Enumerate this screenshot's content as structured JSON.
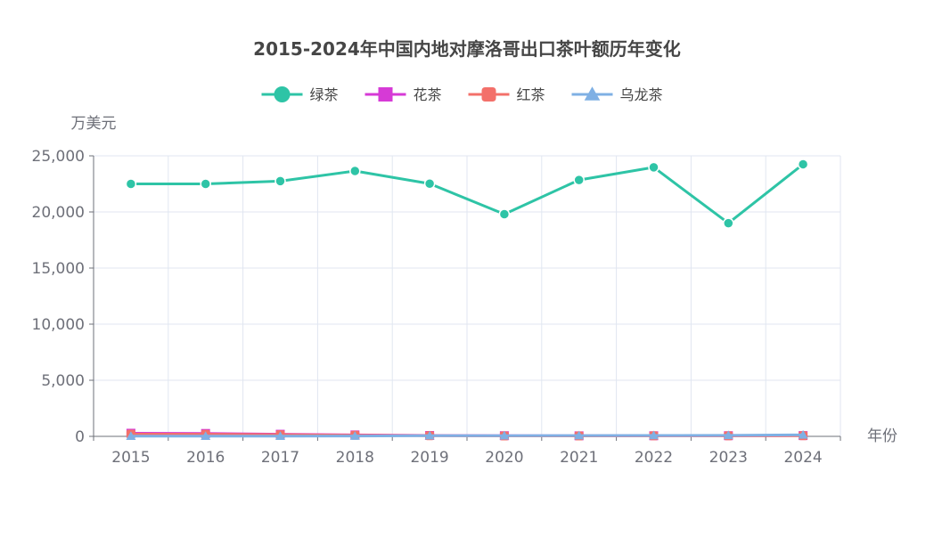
{
  "chart_data": {
    "type": "line",
    "title": "2015-2024年中国内地对摩洛哥出口茶叶额历年变化",
    "xlabel": "年份",
    "ylabel": "万美元",
    "categories": [
      "2015",
      "2016",
      "2017",
      "2018",
      "2019",
      "2020",
      "2021",
      "2022",
      "2023",
      "2024"
    ],
    "ylim": [
      0,
      25000
    ],
    "yticks": [
      0,
      5000,
      10000,
      15000,
      20000,
      25000
    ],
    "ytick_labels": [
      "0",
      "5,000",
      "10,000",
      "15,000",
      "20,000",
      "25,000"
    ],
    "grid": true,
    "legend_position": "top-center",
    "series": [
      {
        "name": "绿茶",
        "color": "#2ec4a6",
        "marker": "circle",
        "values": [
          22500,
          22500,
          22750,
          23650,
          22520,
          19800,
          22850,
          23980,
          19000,
          24250
        ]
      },
      {
        "name": "花茶",
        "color": "#d63ad6",
        "marker": "square",
        "values": [
          280,
          260,
          190,
          130,
          80,
          60,
          50,
          55,
          60,
          70
        ]
      },
      {
        "name": "红茶",
        "color": "#f3706a",
        "marker": "roundrect",
        "values": [
          200,
          190,
          150,
          100,
          60,
          40,
          35,
          45,
          50,
          60
        ]
      },
      {
        "name": "乌龙茶",
        "color": "#7fb0e4",
        "marker": "triangle",
        "values": [
          20,
          20,
          20,
          30,
          60,
          60,
          70,
          80,
          90,
          130
        ]
      }
    ]
  }
}
